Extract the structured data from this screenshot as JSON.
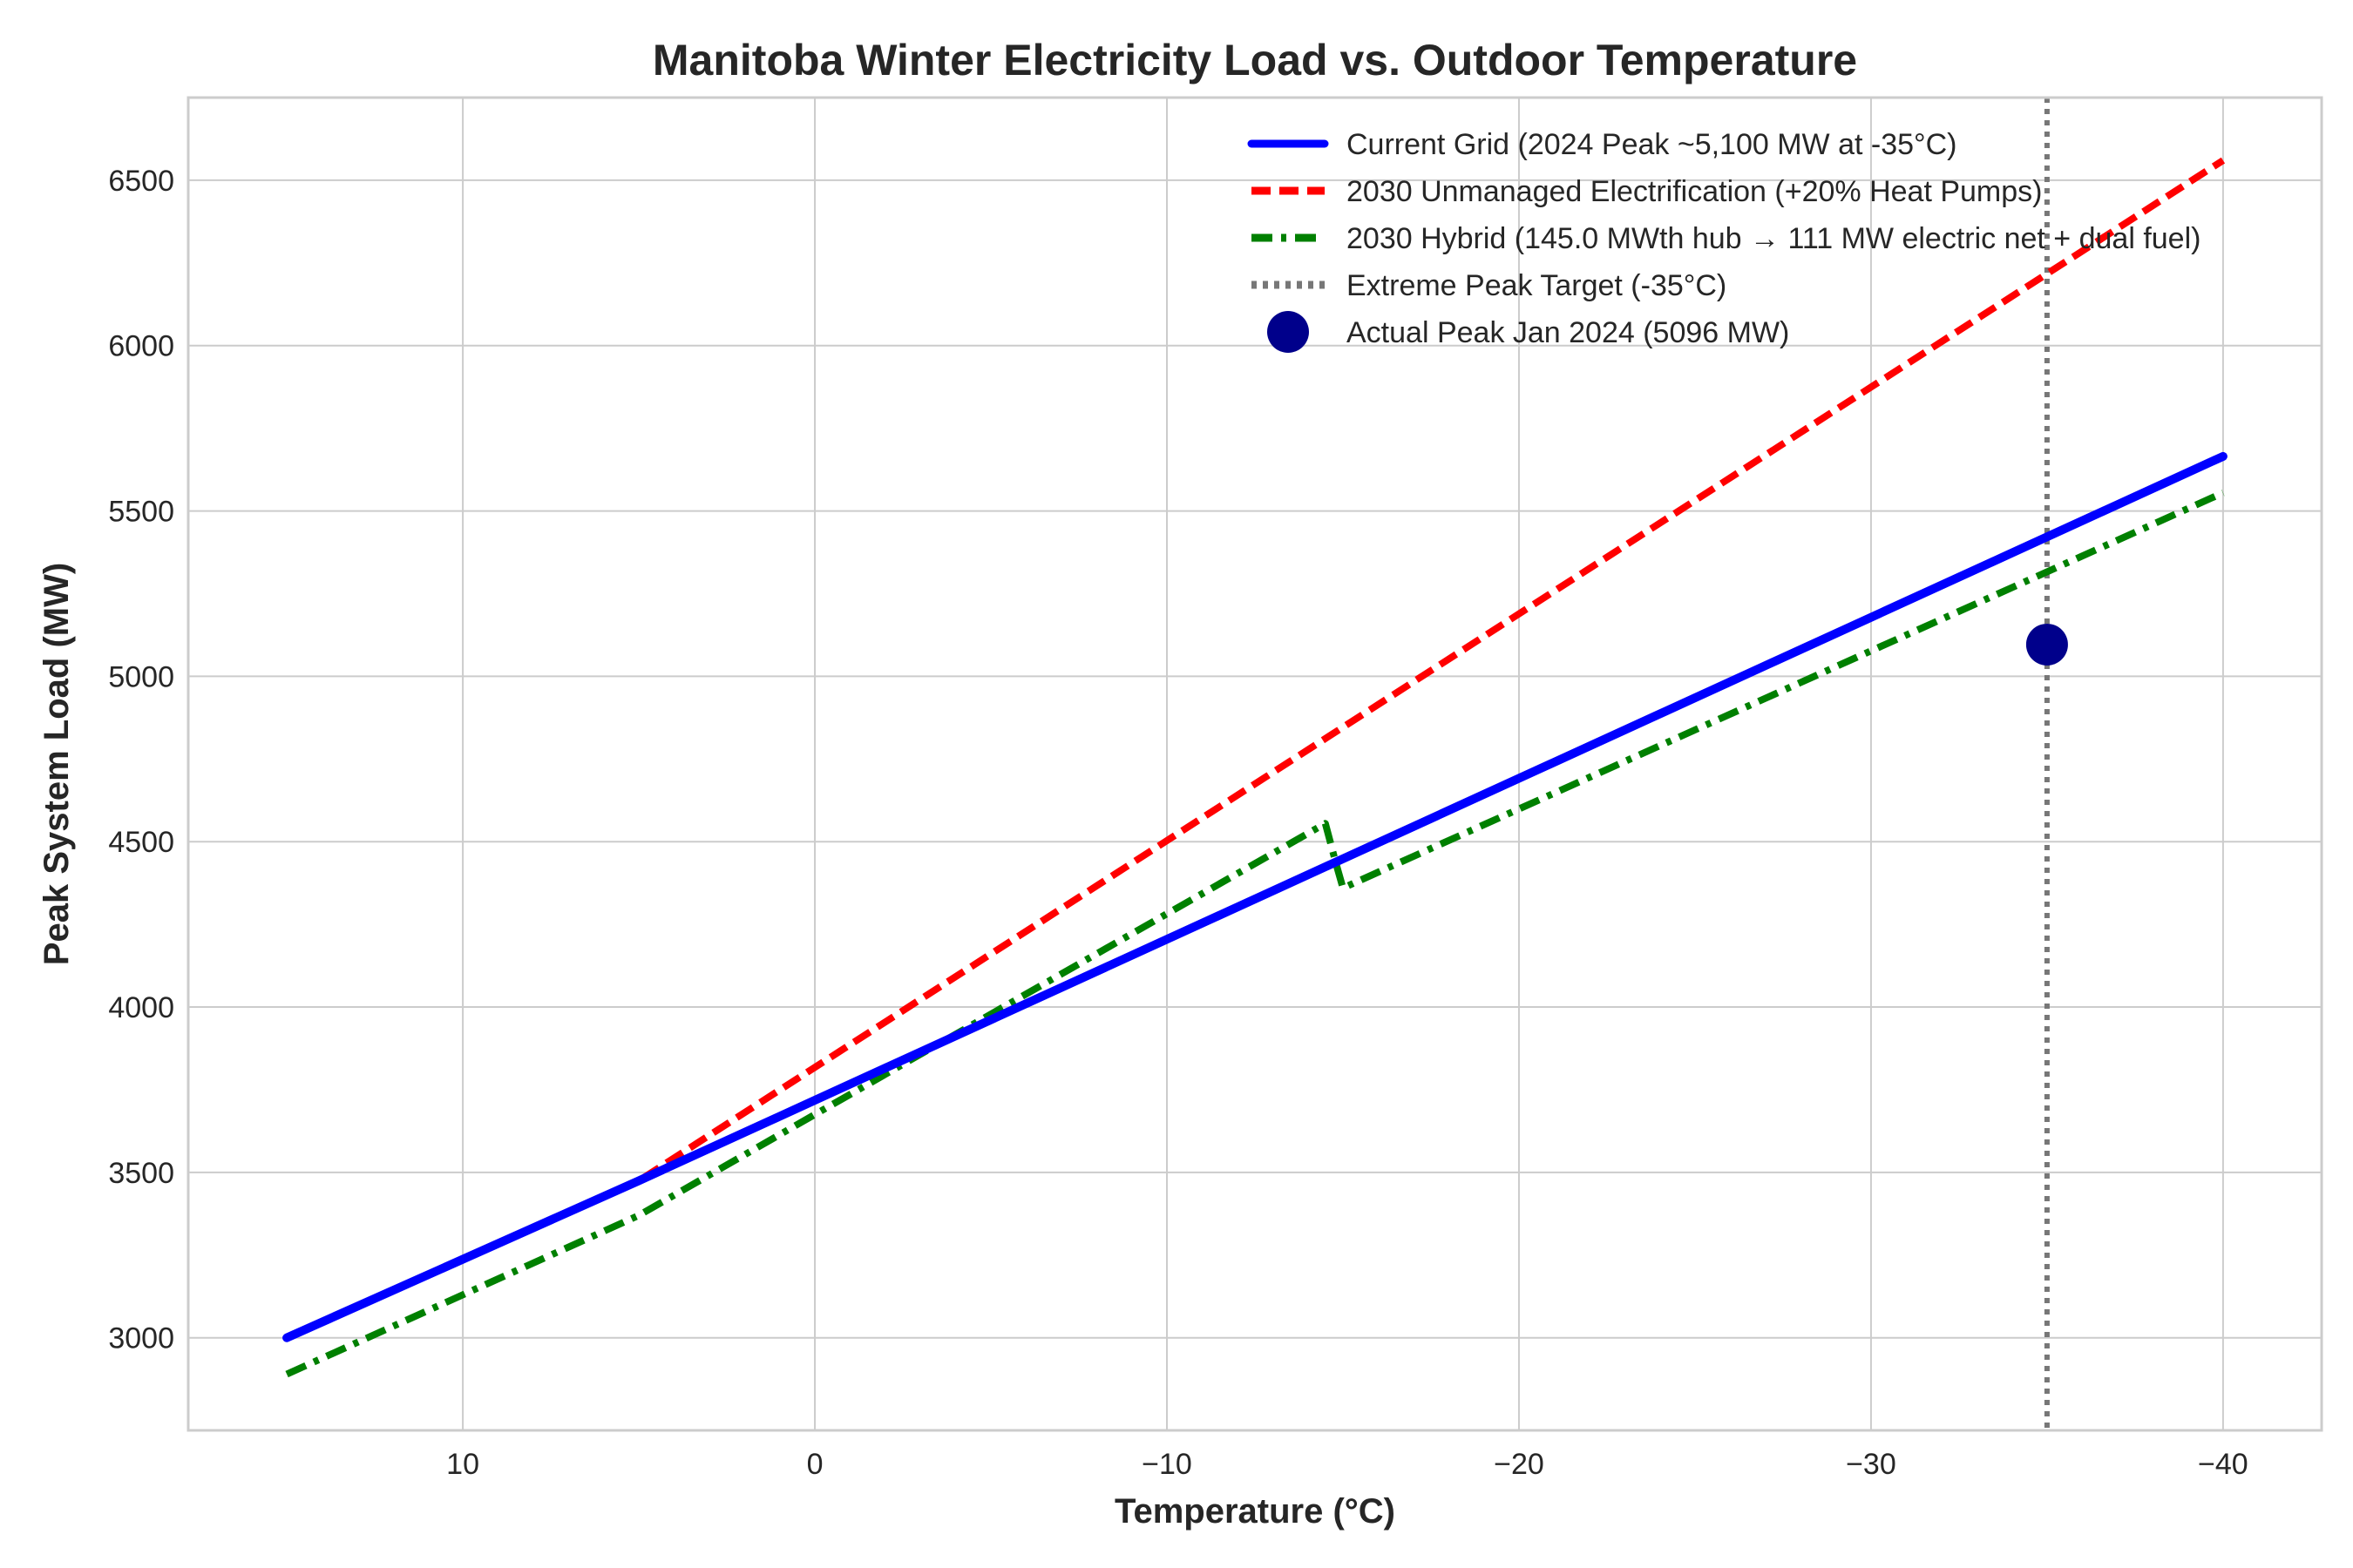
{
  "chart_data": {
    "type": "line",
    "title": "Manitoba Winter Electricity Load vs. Outdoor Temperature",
    "xlabel": "Temperature (°C)",
    "ylabel": "Peak System Load (MW)",
    "xlim": [
      17.8,
      -42.8
    ],
    "ylim": [
      2720,
      6750
    ],
    "x_reversed": true,
    "grid": true,
    "legend_position": "top-right",
    "x_ticks": [
      10,
      0,
      -10,
      -20,
      -30,
      -40
    ],
    "x_tick_labels": [
      "10",
      "0",
      "−10",
      "−20",
      "−30",
      "−40"
    ],
    "y_ticks": [
      3000,
      3500,
      4000,
      4500,
      5000,
      5500,
      6000,
      6500
    ],
    "y_tick_labels": [
      "3000",
      "3500",
      "4000",
      "4500",
      "5000",
      "5500",
      "6000",
      "6500"
    ],
    "series": [
      {
        "name": "Current Grid (2024 Peak ~5,100 MW at -35°C)",
        "color": "#0000ff",
        "style": "solid",
        "x": [
          15,
          5,
          -40
        ],
        "y": [
          3000,
          3475,
          5665
        ]
      },
      {
        "name": "2030 Unmanaged Electrification (+20% Heat Pumps)",
        "color": "#ff0000",
        "style": "dashed",
        "x": [
          15,
          5,
          -40
        ],
        "y": [
          3000,
          3475,
          6560
        ]
      },
      {
        "name": "2030 Hybrid (145.0 MWth hub → 111 MW electric net + dual fuel)",
        "color": "#008000",
        "style": "dashdot",
        "x": [
          15,
          5,
          0,
          -14.5,
          -14.8,
          -15,
          -40
        ],
        "y": [
          2890,
          3370,
          3675,
          4555,
          4435,
          4360,
          5555
        ]
      }
    ],
    "reference_lines": [
      {
        "name": "Extreme Peak Target (-35°C)",
        "orientation": "vertical",
        "x": -35,
        "color": "#777777",
        "style": "dotted"
      }
    ],
    "points": [
      {
        "name": "Actual Peak Jan 2024 (5096 MW)",
        "x": -35,
        "y": 5096,
        "color": "#00008b"
      }
    ]
  }
}
